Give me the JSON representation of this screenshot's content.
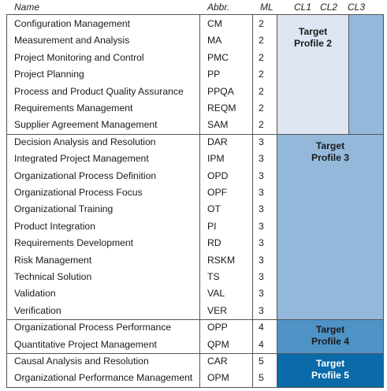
{
  "header": {
    "name": "Name",
    "abbr": "Abbr.",
    "ml": "ML",
    "cl1": "CL1",
    "cl2": "CL2",
    "cl3": "CL3"
  },
  "groups": [
    {
      "rows": [
        {
          "name": "Configuration Management",
          "abbr": "CM",
          "ml": "2"
        },
        {
          "name": "Measurement and Analysis",
          "abbr": "MA",
          "ml": "2"
        },
        {
          "name": "Project Monitoring and Control",
          "abbr": "PMC",
          "ml": "2"
        },
        {
          "name": "Project Planning",
          "abbr": "PP",
          "ml": "2"
        },
        {
          "name": "Process and Product Quality Assurance",
          "abbr": "PPQA",
          "ml": "2"
        },
        {
          "name": "Requirements Management",
          "abbr": "REQM",
          "ml": "2"
        },
        {
          "name": "Supplier Agreement Management",
          "abbr": "SAM",
          "ml": "2"
        }
      ]
    },
    {
      "rows": [
        {
          "name": "Decision Analysis and Resolution",
          "abbr": "DAR",
          "ml": "3"
        },
        {
          "name": "Integrated Project Management",
          "abbr": "IPM",
          "ml": "3"
        },
        {
          "name": "Organizational Process Definition",
          "abbr": "OPD",
          "ml": "3"
        },
        {
          "name": "Organizational Process Focus",
          "abbr": "OPF",
          "ml": "3"
        },
        {
          "name": "Organizational Training",
          "abbr": "OT",
          "ml": "3"
        },
        {
          "name": "Product Integration",
          "abbr": "PI",
          "ml": "3"
        },
        {
          "name": "Requirements Development",
          "abbr": "RD",
          "ml": "3"
        },
        {
          "name": "Risk Management",
          "abbr": "RSKM",
          "ml": "3"
        },
        {
          "name": "Technical Solution",
          "abbr": "TS",
          "ml": "3"
        },
        {
          "name": "Validation",
          "abbr": "VAL",
          "ml": "3"
        },
        {
          "name": "Verification",
          "abbr": "VER",
          "ml": "3"
        }
      ]
    },
    {
      "rows": [
        {
          "name": "Organizational Process Performance",
          "abbr": "OPP",
          "ml": "4"
        },
        {
          "name": "Quantitative Project Management",
          "abbr": "QPM",
          "ml": "4"
        }
      ]
    },
    {
      "rows": [
        {
          "name": "Causal Analysis and Resolution",
          "abbr": "CAR",
          "ml": "5"
        },
        {
          "name": "Organizational Performance Management",
          "abbr": "OPM",
          "ml": "5"
        }
      ]
    }
  ],
  "profiles": [
    {
      "line1": "Target",
      "line2": "Profile 2",
      "color": "#dde6f2",
      "text_color": "#1a1a1a"
    },
    {
      "line1": "Target",
      "line2": "Profile 3",
      "color": "#93b8da",
      "text_color": "#1a1a1a"
    },
    {
      "line1": "Target",
      "line2": "Profile 4",
      "color": "#4f93c6",
      "text_color": "#1a1a1a"
    },
    {
      "line1": "Target",
      "line2": "Profile 5",
      "color": "#0a6aaa",
      "text_color": "#ffffff"
    }
  ]
}
